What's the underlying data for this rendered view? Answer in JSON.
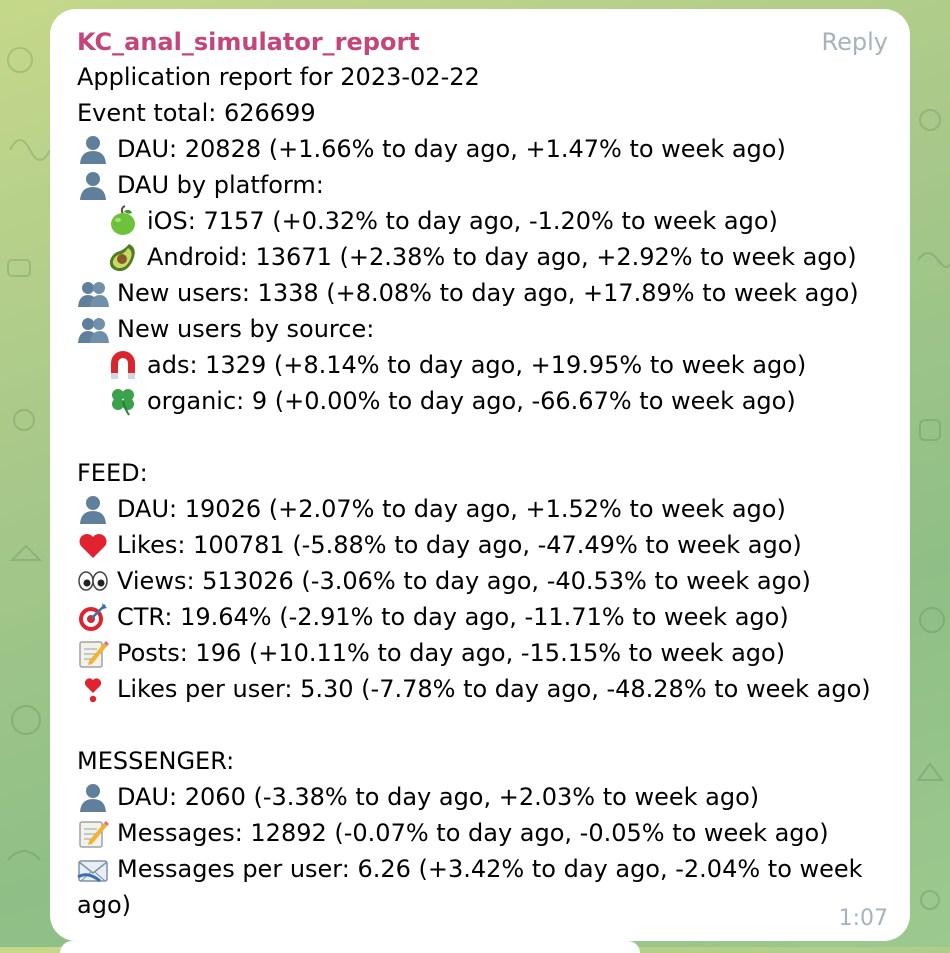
{
  "message": {
    "sender": "KC_anal_simulator_report",
    "reply_label": "Reply",
    "time": "1:07",
    "lines": {
      "l1": "Application report for 2023-02-22",
      "l2": "Event total: 626699",
      "l3": "DAU: 20828 (+1.66% to day ago, +1.47% to week ago)",
      "l4": "DAU by platform:",
      "l5": "iOS: 7157 (+0.32% to day ago, -1.20% to week ago)",
      "l6": "Android: 13671 (+2.38% to day ago, +2.92% to week ago)",
      "l7": "New users: 1338 (+8.08% to day ago, +17.89% to week ago)",
      "l8": "New users by source:",
      "l9": "ads: 1329 (+8.14% to day ago, +19.95% to week ago)",
      "l10": "organic: 9 (+0.00% to day ago, -66.67% to week ago)",
      "l11": "FEED:",
      "l12": "DAU: 19026 (+2.07% to day ago, +1.52% to week ago)",
      "l13": "Likes: 100781 (-5.88% to day ago, -47.49% to week ago)",
      "l14": "Views: 513026 (-3.06% to day ago, -40.53% to week ago)",
      "l15": "CTR: 19.64% (-2.91% to day ago, -11.71% to week ago)",
      "l16": "Posts: 196 (+10.11% to day ago, -15.15% to week ago)",
      "l17": "Likes per user: 5.30 (-7.78% to day ago, -48.28% to week ago)",
      "l18": "MESSENGER:",
      "l19": "DAU: 2060 (-3.38% to day ago, +2.03% to week ago)",
      "l20": "Messages: 12892 (-0.07% to day ago, -0.05% to week ago)",
      "l21": "Messages per user: 6.26 (+3.42% to day ago, -2.04% to week",
      "l22": "ago)"
    },
    "icons": {
      "user": "bust-in-silhouette-icon",
      "users": "busts-in-silhouette-icon",
      "apple": "green-apple-icon",
      "avocado": "avocado-icon",
      "magnet": "magnet-icon",
      "clover": "four-leaf-clover-icon",
      "heart": "red-heart-icon",
      "eyes": "eyes-icon",
      "target": "direct-hit-icon",
      "memo": "memo-icon",
      "exclamation": "heart-exclamation-icon",
      "envelope": "incoming-envelope-icon"
    }
  },
  "colors": {
    "sender": "#c5457a",
    "muted": "#a6b3bd",
    "bubble": "#ffffff"
  }
}
